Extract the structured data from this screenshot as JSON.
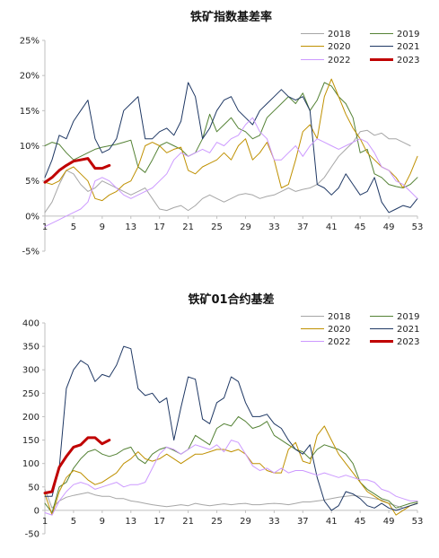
{
  "chart_data": [
    {
      "type": "line",
      "title": "铁矿指数基差率",
      "ylim": [
        -5,
        25
      ],
      "y_ticks": [
        "-5%",
        "0%",
        "5%",
        "10%",
        "15%",
        "20%",
        "25%"
      ],
      "y_tick_values": [
        -5,
        0,
        5,
        10,
        15,
        20,
        25
      ],
      "x_ticks": [
        "1",
        "5",
        "9",
        "13",
        "17",
        "21",
        "25",
        "29",
        "33",
        "37",
        "41",
        "45",
        "49",
        "53"
      ],
      "x_tick_values": [
        1,
        5,
        9,
        13,
        17,
        21,
        25,
        29,
        33,
        37,
        41,
        45,
        49,
        53
      ],
      "xlim": [
        1,
        53
      ],
      "legend_position": "top-right",
      "series": [
        {
          "name": "2018",
          "color": "#a6a6a6",
          "width": 1,
          "values": [
            0.5,
            2,
            4.5,
            6.5,
            6,
            4.5,
            3.5,
            4,
            5,
            4.5,
            4,
            3.5,
            3,
            3.5,
            4,
            2.5,
            1,
            0.8,
            1.2,
            1.5,
            0.8,
            1.5,
            2.5,
            3,
            2.5,
            2,
            2.5,
            3,
            3.2,
            3,
            2.5,
            2.8,
            3,
            3.5,
            4,
            3.5,
            3.8,
            4,
            4.5,
            5.5,
            7,
            8.5,
            9.5,
            10.5,
            12,
            12.2,
            11.5,
            11.8,
            11,
            11,
            10.5,
            10,
            null
          ]
        },
        {
          "name": "2019",
          "color": "#548235",
          "width": 1,
          "values": [
            10,
            10.5,
            10.2,
            9,
            8,
            8.5,
            9,
            9.5,
            9.8,
            10,
            10.2,
            10.5,
            10.8,
            7,
            6.2,
            8,
            10,
            10.5,
            10,
            9.5,
            8.5,
            9,
            11,
            14.5,
            12,
            13,
            14,
            12.5,
            12,
            11,
            11.5,
            14,
            15,
            16,
            17,
            16,
            17.5,
            15,
            16.5,
            19,
            18.5,
            17,
            16,
            14,
            9,
            9.5,
            6,
            5.5,
            4.5,
            4.2,
            4,
            4.5,
            5.5
          ]
        },
        {
          "name": "2020",
          "color": "#bf9000",
          "width": 1,
          "values": [
            4.8,
            4.5,
            5,
            6.5,
            7,
            6,
            5,
            2.5,
            2.2,
            3,
            3.5,
            4.5,
            5,
            7,
            10,
            10.5,
            10,
            9,
            9.5,
            9.8,
            6.5,
            6,
            7,
            7.5,
            8,
            9,
            8,
            10,
            11,
            8,
            9,
            10.5,
            8,
            4,
            4.5,
            8,
            12,
            13,
            11,
            17,
            19.5,
            17,
            14.5,
            12.5,
            11,
            9,
            8,
            7,
            6.5,
            5.5,
            4,
            6,
            8.5
          ]
        },
        {
          "name": "2021",
          "color": "#1f3864",
          "width": 1,
          "values": [
            5.5,
            8,
            11.5,
            11,
            13.5,
            15,
            16.5,
            11,
            9,
            9.5,
            11,
            15,
            16,
            17,
            11,
            11,
            12,
            12.5,
            11.5,
            13.5,
            19,
            17,
            11,
            12.5,
            15,
            16.5,
            17,
            15,
            14,
            13,
            15,
            16,
            17,
            18,
            17,
            16.5,
            17,
            15,
            4.5,
            4,
            3,
            4,
            6,
            4.5,
            3,
            3.5,
            5.5,
            2,
            0.5,
            1,
            1.5,
            1.2,
            2.5
          ]
        },
        {
          "name": "2022",
          "color": "#cc99ff",
          "width": 1,
          "values": [
            -1.5,
            -1,
            -0.5,
            0,
            0.5,
            1,
            2,
            5,
            5.5,
            5,
            4,
            3,
            2.5,
            3,
            3.5,
            4,
            5,
            6,
            8,
            9,
            8.5,
            9,
            9.5,
            9,
            10.5,
            10,
            11,
            11.5,
            13,
            14,
            12,
            11,
            8,
            8,
            9,
            10,
            8.5,
            10,
            11,
            10.5,
            10,
            9.5,
            10,
            10.5,
            11,
            10.5,
            9,
            7,
            6.5,
            5,
            4.5,
            3.5,
            2.5
          ]
        },
        {
          "name": "2023",
          "color": "#c00000",
          "width": 3,
          "values": [
            4.8,
            5.5,
            6.5,
            7.2,
            7.8,
            8,
            8.2,
            6.8,
            6.8,
            7.2
          ]
        }
      ]
    },
    {
      "type": "line",
      "title": "铁矿01合约基差",
      "ylim": [
        -50,
        400
      ],
      "y_ticks": [
        "-50",
        "0",
        "50",
        "100",
        "150",
        "200",
        "250",
        "300",
        "350",
        "400"
      ],
      "y_tick_values": [
        -50,
        0,
        50,
        100,
        150,
        200,
        250,
        300,
        350,
        400
      ],
      "x_ticks": [
        "1",
        "5",
        "9",
        "13",
        "17",
        "21",
        "25",
        "29",
        "33",
        "37",
        "41",
        "45",
        "49",
        "53"
      ],
      "x_tick_values": [
        1,
        5,
        9,
        13,
        17,
        21,
        25,
        29,
        33,
        37,
        41,
        45,
        49,
        53
      ],
      "xlim": [
        1,
        53
      ],
      "legend_position": "top-right",
      "series": [
        {
          "name": "2018",
          "color": "#a6a6a6",
          "width": 1,
          "values": [
            45,
            5,
            20,
            28,
            32,
            35,
            38,
            33,
            30,
            30,
            25,
            25,
            20,
            18,
            15,
            12,
            10,
            8,
            10,
            12,
            10,
            15,
            12,
            10,
            12,
            14,
            12,
            14,
            15,
            12,
            12,
            14,
            15,
            14,
            12,
            15,
            18,
            18,
            20,
            22,
            25,
            28,
            30,
            32,
            30,
            28,
            25,
            22,
            15,
            10,
            5,
            10,
            15
          ]
        },
        {
          "name": "2019",
          "color": "#548235",
          "width": 1,
          "values": [
            15,
            -5,
            50,
            60,
            90,
            110,
            125,
            130,
            120,
            115,
            120,
            130,
            135,
            110,
            100,
            120,
            130,
            135,
            128,
            120,
            130,
            160,
            150,
            140,
            175,
            185,
            180,
            200,
            190,
            175,
            180,
            190,
            160,
            150,
            140,
            130,
            125,
            110,
            130,
            140,
            135,
            130,
            120,
            100,
            60,
            45,
            35,
            25,
            20,
            5,
            10,
            15,
            18
          ]
        },
        {
          "name": "2020",
          "color": "#bf9000",
          "width": 1,
          "values": [
            35,
            -10,
            40,
            70,
            85,
            80,
            65,
            55,
            60,
            70,
            80,
            100,
            110,
            125,
            110,
            105,
            110,
            120,
            110,
            100,
            110,
            120,
            120,
            125,
            130,
            130,
            125,
            130,
            120,
            100,
            100,
            85,
            80,
            80,
            130,
            145,
            105,
            100,
            160,
            180,
            150,
            120,
            100,
            80,
            60,
            40,
            30,
            20,
            15,
            -10,
            0,
            10,
            15
          ]
        },
        {
          "name": "2021",
          "color": "#1f3864",
          "width": 1,
          "values": [
            30,
            30,
            90,
            260,
            300,
            320,
            310,
            275,
            290,
            285,
            310,
            350,
            345,
            260,
            245,
            250,
            230,
            240,
            150,
            220,
            285,
            280,
            195,
            185,
            230,
            240,
            285,
            275,
            230,
            200,
            200,
            205,
            185,
            175,
            150,
            130,
            120,
            140,
            70,
            20,
            0,
            10,
            40,
            35,
            25,
            10,
            5,
            15,
            5,
            0,
            5,
            10,
            15
          ]
        },
        {
          "name": "2022",
          "color": "#cc99ff",
          "width": 1,
          "values": [
            -5,
            -10,
            20,
            40,
            55,
            60,
            55,
            45,
            50,
            55,
            60,
            50,
            55,
            55,
            60,
            90,
            120,
            135,
            130,
            120,
            130,
            140,
            135,
            130,
            140,
            125,
            150,
            145,
            120,
            95,
            85,
            90,
            80,
            90,
            80,
            85,
            85,
            80,
            75,
            80,
            75,
            70,
            75,
            70,
            65,
            65,
            60,
            45,
            40,
            30,
            25,
            20,
            20
          ]
        },
        {
          "name": "2023",
          "color": "#c00000",
          "width": 3,
          "values": [
            37,
            40,
            92,
            115,
            135,
            140,
            155,
            155,
            142,
            150
          ]
        }
      ]
    }
  ]
}
